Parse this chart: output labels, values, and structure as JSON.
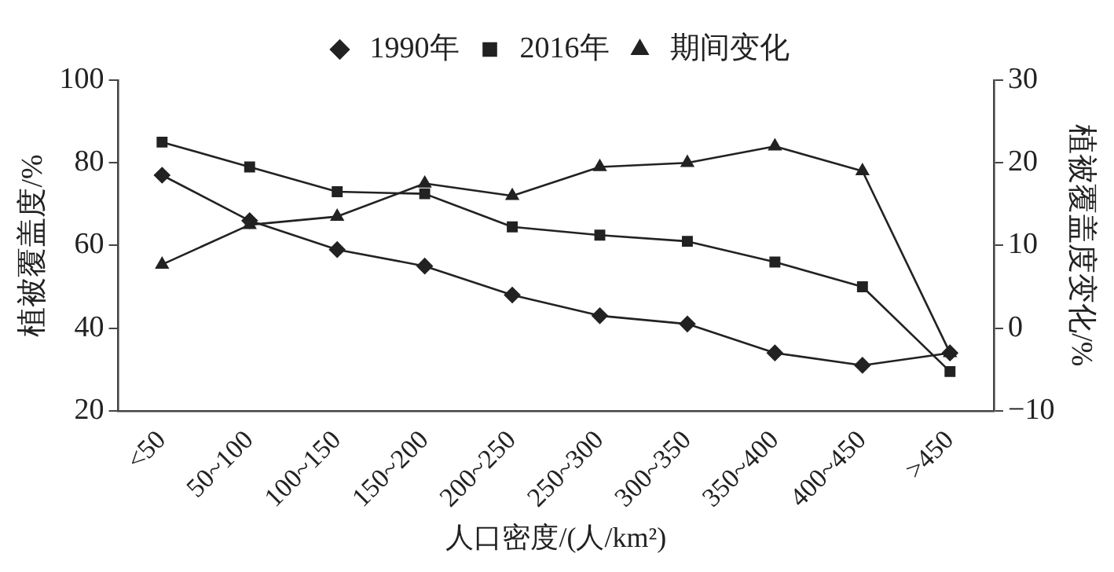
{
  "chart_data": {
    "type": "line",
    "xlabel": "人口密度/(人/km²)",
    "ylabel": "植被覆盖度/%",
    "y2label": "植被覆盖度变化/%",
    "categories": [
      "<50",
      "50~100",
      "100~150",
      "150~200",
      "200~250",
      "250~300",
      "300~350",
      "350~400",
      "400~450",
      ">450"
    ],
    "series": [
      {
        "name": "1990年",
        "color": "#222222",
        "marker": "diamond",
        "values": [
          77,
          66,
          59,
          55,
          48,
          43,
          41,
          34,
          31,
          34
        ]
      },
      {
        "name": "2016年",
        "color": "#222222",
        "marker": "square",
        "values": [
          85,
          79,
          73,
          72.5,
          64.5,
          62.5,
          61,
          56,
          50,
          29.5
        ]
      },
      {
        "name": "期间变化",
        "color": "#222222",
        "marker": "triangle",
        "axis": "y2",
        "values": [
          7.7,
          12.5,
          13.5,
          17.5,
          16,
          19.5,
          20,
          22,
          19,
          -3
        ]
      }
    ],
    "ylim": [
      20,
      100
    ],
    "yticks": [
      20,
      40,
      60,
      80,
      100
    ],
    "y2lim": [
      -10,
      30
    ],
    "y2ticks": [
      -10,
      0,
      10,
      20,
      30
    ],
    "grid": false,
    "legend": "top",
    "line_style": "solid"
  }
}
